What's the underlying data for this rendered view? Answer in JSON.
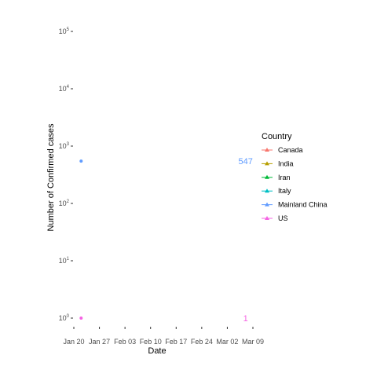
{
  "chart_data": {
    "type": "scatter",
    "xlabel": "Date",
    "ylabel": "Number of Confirmed cases",
    "y_scale": "log10",
    "ylim": [
      1,
      100000
    ],
    "y_ticks": [
      {
        "value": 1,
        "base": "10",
        "exp": "0"
      },
      {
        "value": 10,
        "base": "10",
        "exp": "1"
      },
      {
        "value": 100,
        "base": "10",
        "exp": "2"
      },
      {
        "value": 1000,
        "base": "10",
        "exp": "3"
      },
      {
        "value": 10000,
        "base": "10",
        "exp": "4"
      },
      {
        "value": 100000,
        "base": "10",
        "exp": "5"
      }
    ],
    "x_ticks": [
      "Jan 20",
      "Jan 27",
      "Feb 03",
      "Feb 10",
      "Feb 17",
      "Feb 24",
      "Mar 02",
      "Mar 09"
    ],
    "xlim": [
      "2020-01-20",
      "2020-03-09"
    ],
    "grid": false,
    "legend_position": "right",
    "legend": {
      "title": "Country",
      "entries": [
        {
          "name": "Canada",
          "color": "#F8766D"
        },
        {
          "name": "India",
          "color": "#B79F00"
        },
        {
          "name": "Iran",
          "color": "#00BA38"
        },
        {
          "name": "Italy",
          "color": "#00BFC4"
        },
        {
          "name": "Mainland China",
          "color": "#619CFF"
        },
        {
          "name": "US",
          "color": "#F564E3"
        }
      ]
    },
    "series": [
      {
        "name": "Mainland China",
        "color": "#619CFF",
        "points": [
          {
            "x": "2020-01-22",
            "y": 547
          }
        ]
      },
      {
        "name": "US",
        "color": "#F564E3",
        "points": [
          {
            "x": "2020-01-22",
            "y": 1
          }
        ]
      }
    ],
    "annotations": [
      {
        "text": "547",
        "x": "2020-03-07",
        "y": 547,
        "color": "#619CFF"
      },
      {
        "text": "1",
        "x": "2020-03-07",
        "y": 1,
        "color": "#F564E3"
      }
    ]
  }
}
